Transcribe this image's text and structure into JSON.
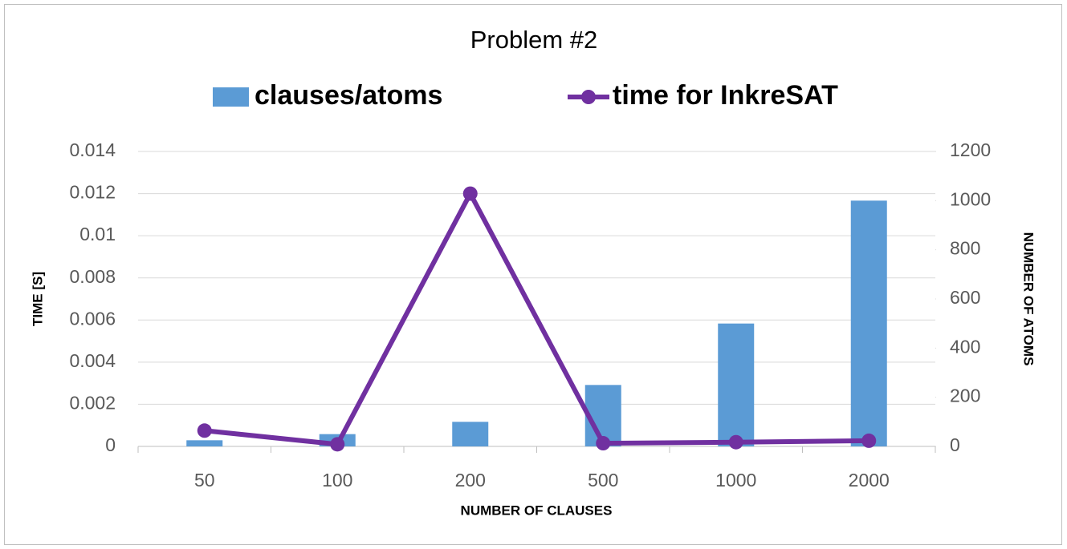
{
  "chart_data": {
    "type": "combo",
    "title": "Problem #2",
    "categories": [
      "50",
      "100",
      "200",
      "500",
      "1000",
      "2000"
    ],
    "series": [
      {
        "name": "clauses/atoms",
        "type": "bar",
        "axis": "y2",
        "color": "#5b9bd5",
        "values": [
          25,
          50,
          100,
          250,
          500,
          1000
        ]
      },
      {
        "name": "time for InkreSAT",
        "type": "line",
        "color": "#7030a0",
        "values": [
          0.00075,
          0.0001,
          0.012,
          0.00015,
          0.0002,
          0.00027
        ]
      }
    ],
    "xlabel": "NUMBER OF CLAUSES",
    "ylabel": "TIME [S]",
    "y2label": "NUMBER OF ATOMS",
    "ylim": [
      0,
      0.014
    ],
    "yticks": [
      0,
      0.002,
      0.004,
      0.006,
      0.008,
      0.01,
      0.012,
      0.014
    ],
    "y2lim": [
      0,
      1200
    ],
    "y2ticks": [
      0,
      200,
      400,
      600,
      800,
      1000,
      1200
    ],
    "grid": true,
    "legend": "top"
  }
}
